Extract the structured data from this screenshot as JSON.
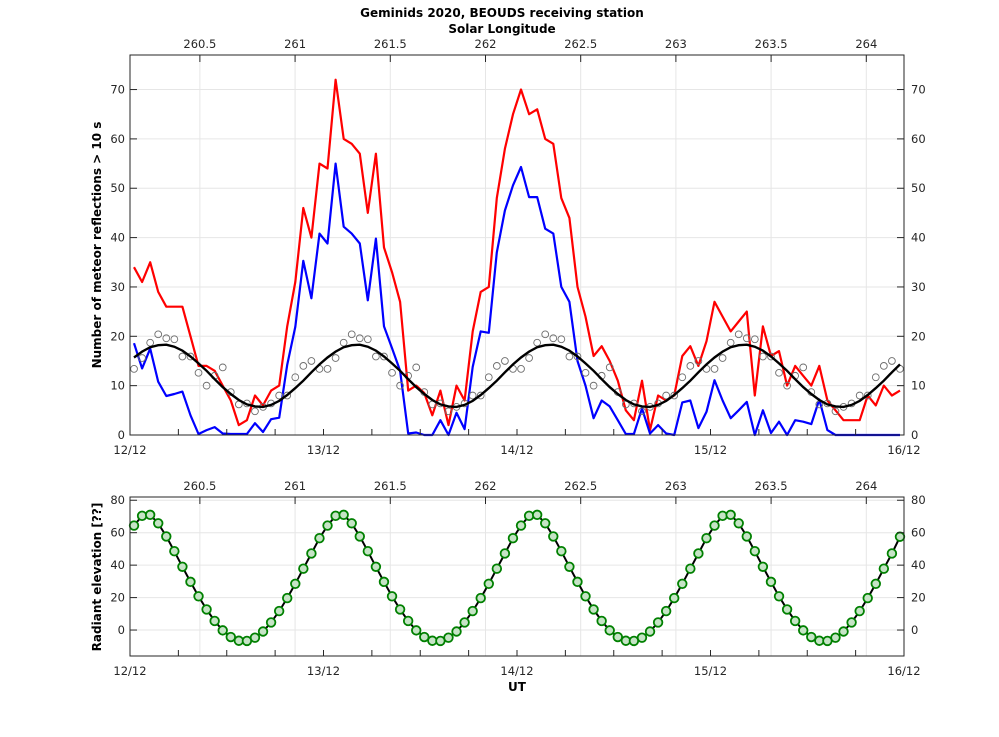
{
  "figure": {
    "title": "Geminids 2020, BEOUDS receiving station",
    "top_axis_label": "Solar Longitude",
    "colors": {
      "red_series": "#ff0000",
      "blue_series": "#0000ff",
      "dots": "#6e6e6e",
      "fit": "#000000",
      "elevation_marker_edge": "#008000",
      "elevation_marker_fill": "#c6e4c6",
      "grid": "#e6e6e6",
      "axes": "#262626"
    }
  },
  "chart_data": [
    {
      "type": "line",
      "ylabel": "Number of meteor reflections > 10 s",
      "xlabel": "",
      "ylim": [
        0,
        77
      ],
      "yticks": [
        0,
        10,
        20,
        30,
        40,
        50,
        60,
        70
      ],
      "xlim": [
        "12/12 00:00",
        "16/12 00:00"
      ],
      "xtick_labels": [
        "12/12",
        "13/12",
        "14/12",
        "15/12",
        "16/12"
      ],
      "x_minor_tick_hours": 6,
      "top_axis": {
        "label": "Solar Longitude",
        "range": [
          260.133,
          264.198
        ],
        "ticks": [
          "260.5",
          "261",
          "261.5",
          "262",
          "262.5",
          "263",
          "263.5",
          "264"
        ]
      },
      "grid": true,
      "right_axis_mirrored": true,
      "series": [
        {
          "style": "red-line",
          "color": "#ff0000",
          "values": [
            34,
            31,
            35,
            29,
            26,
            26,
            26,
            20,
            14,
            14,
            13,
            10,
            7,
            2,
            3,
            8,
            6,
            9,
            10,
            22,
            31,
            46,
            40,
            55,
            54,
            72,
            60,
            59,
            57,
            45,
            57,
            38,
            33,
            27,
            9,
            10,
            8.5,
            4,
            9,
            2,
            10,
            7,
            21,
            29,
            30,
            48,
            58,
            65,
            70,
            65,
            66,
            60,
            59,
            48,
            44,
            30,
            24,
            16,
            18,
            15,
            11,
            5,
            3,
            11,
            1,
            8,
            7,
            8,
            16,
            18,
            14,
            19,
            27,
            24,
            21,
            23,
            25,
            8,
            22,
            16,
            17,
            10,
            14,
            12,
            10,
            14,
            7,
            5,
            3,
            3,
            3,
            8,
            6,
            10,
            8,
            9
          ]
        },
        {
          "style": "blue-line",
          "color": "#0000ff",
          "values": [
            18.6,
            13.5,
            17.5,
            10.8,
            7.9,
            8.3,
            8.8,
            4,
            0.2,
            1,
            1.6,
            0.3,
            0.2,
            0.2,
            0.2,
            2.4,
            0.6,
            3.2,
            3.5,
            14.2,
            21.9,
            35.3,
            27.7,
            40.8,
            38.8,
            55,
            42.2,
            40.8,
            38.8,
            27.3,
            39.8,
            22,
            17.6,
            13,
            0.3,
            0.5,
            0,
            0,
            3,
            0,
            4.5,
            1.2,
            13.8,
            21,
            20.7,
            37,
            45.5,
            50.6,
            54.3,
            48.2,
            48.2,
            41.8,
            40.8,
            30,
            27,
            15,
            10,
            3.4,
            7,
            5.8,
            3,
            0.2,
            0.2,
            5.4,
            0.3,
            2,
            0.3,
            0,
            6.6,
            7,
            1.4,
            4.7,
            11.1,
            7,
            3.4,
            5,
            6.7,
            0,
            5,
            0.4,
            2.7,
            0,
            3,
            2.7,
            2.2,
            7.2,
            1,
            0,
            0,
            0,
            0,
            0,
            0,
            0,
            0,
            0
          ]
        },
        {
          "style": "open-circles",
          "color": "#6e6e6e",
          "values": [
            13.4,
            15.6,
            18.7,
            20.4,
            19.6,
            19.4,
            15.9,
            15.9,
            12.6,
            10,
            12,
            13.7,
            8.7,
            6.2,
            6.4,
            4.8,
            5.7,
            6.4,
            8,
            8,
            11.7,
            14,
            15,
            13.4,
            13.4,
            15.6,
            18.7,
            20.4,
            19.6,
            19.4,
            15.9,
            15.9,
            12.6,
            10,
            12,
            13.7,
            8.7,
            6.2,
            6.4,
            4.8,
            5.7,
            6.4,
            8,
            8,
            11.7,
            14,
            15,
            13.4,
            13.4,
            15.6,
            18.7,
            20.4,
            19.6,
            19.4,
            15.9,
            15.9,
            12.6,
            10,
            12,
            13.7,
            8.7,
            6.2,
            6.4,
            4.8,
            5.7,
            6.4,
            8,
            8,
            11.7,
            14,
            15,
            13.4,
            13.4,
            15.6,
            18.7,
            20.4,
            19.6,
            19.4,
            15.9,
            15.9,
            12.6,
            10,
            12,
            13.7,
            8.7,
            6.2,
            6.4,
            4.8,
            5.7,
            6.4,
            8,
            8,
            11.7,
            14,
            15,
            13.4
          ]
        },
        {
          "style": "black-curve",
          "color": "#000000",
          "values": [
            15.7,
            16.9,
            17.8,
            18.2,
            18.3,
            17.9,
            17.1,
            15.9,
            14.5,
            13,
            11.3,
            9.7,
            8.3,
            7.1,
            6.2,
            5.8,
            5.7,
            6.1,
            6.9,
            8.1,
            9.5,
            11,
            12.7,
            14.3,
            15.7,
            16.9,
            17.8,
            18.2,
            18.3,
            17.9,
            17.1,
            15.9,
            14.5,
            13,
            11.3,
            9.7,
            8.3,
            7.1,
            6.2,
            5.8,
            5.7,
            6.1,
            6.9,
            8.1,
            9.5,
            11,
            12.7,
            14.3,
            15.7,
            16.9,
            17.8,
            18.2,
            18.3,
            17.9,
            17.1,
            15.9,
            14.5,
            13,
            11.3,
            9.7,
            8.3,
            7.1,
            6.2,
            5.8,
            5.7,
            6.1,
            6.9,
            8.1,
            9.5,
            11,
            12.7,
            14.3,
            15.7,
            16.9,
            17.8,
            18.2,
            18.3,
            17.9,
            17.1,
            15.9,
            14.5,
            13,
            11.3,
            9.7,
            8.3,
            7.1,
            6.2,
            5.8,
            5.7,
            6.1,
            6.9,
            8.1,
            9.5,
            11,
            12.7,
            14.3
          ]
        }
      ]
    },
    {
      "type": "line",
      "ylabel": "Radiant elevation [??]",
      "xlabel": "UT",
      "ylim": [
        -16,
        82
      ],
      "yticks": [
        0,
        20,
        40,
        60,
        80
      ],
      "xlim": [
        "12/12 00:00",
        "16/12 00:00"
      ],
      "xtick_labels": [
        "12/12",
        "13/12",
        "14/12",
        "15/12",
        "16/12"
      ],
      "x_minor_tick_hours": 6,
      "top_axis": {
        "range": [
          260.133,
          264.198
        ],
        "ticks": [
          "260.5",
          "261",
          "261.5",
          "262",
          "262.5",
          "263",
          "263.5",
          "264"
        ]
      },
      "grid": true,
      "right_axis_mirrored": true,
      "series": [
        {
          "style": "line-with-circle-markers",
          "color": "#008000",
          "values": [
            64.4,
            70.4,
            71,
            65.8,
            57.7,
            48.6,
            39,
            29.7,
            20.8,
            12.7,
            5.6,
            -0.2,
            -4.3,
            -6.6,
            -6.7,
            -4.7,
            -0.9,
            4.7,
            11.7,
            19.7,
            28.5,
            37.8,
            47.2,
            56.6,
            64.4,
            70.4,
            71,
            65.8,
            57.7,
            48.6,
            39,
            29.7,
            20.8,
            12.7,
            5.6,
            -0.2,
            -4.3,
            -6.6,
            -6.7,
            -4.7,
            -0.9,
            4.7,
            11.7,
            19.7,
            28.5,
            37.8,
            47.2,
            56.6,
            64.4,
            70.4,
            71,
            65.8,
            57.7,
            48.6,
            39,
            29.7,
            20.8,
            12.7,
            5.6,
            -0.2,
            -4.3,
            -6.6,
            -6.7,
            -4.7,
            -0.9,
            4.7,
            11.7,
            19.7,
            28.5,
            37.8,
            47.2,
            56.6,
            64.4,
            70.4,
            71,
            65.8,
            57.7,
            48.6,
            39,
            29.7,
            20.8,
            12.7,
            5.6,
            -0.2,
            -4.3,
            -6.6,
            -6.7,
            -4.7,
            -0.9,
            4.7,
            11.7,
            19.7,
            28.5,
            37.8,
            47.2,
            57.5
          ]
        }
      ]
    }
  ],
  "x": [
    "12/12 00:30",
    "12/12 01:30",
    "12/12 02:30",
    "12/12 03:30",
    "12/12 04:30",
    "12/12 05:30",
    "12/12 06:30",
    "12/12 07:30",
    "12/12 08:30",
    "12/12 09:30",
    "12/12 10:30",
    "12/12 11:30",
    "12/12 12:30",
    "12/12 13:30",
    "12/12 14:30",
    "12/12 15:30",
    "12/12 16:30",
    "12/12 17:30",
    "12/12 18:30",
    "12/12 19:30",
    "12/12 20:30",
    "12/12 21:30",
    "12/12 22:30",
    "12/12 23:30",
    "13/12 00:30",
    "13/12 01:30",
    "13/12 02:30",
    "13/12 03:30",
    "13/12 04:30",
    "13/12 05:30",
    "13/12 06:30",
    "13/12 07:30",
    "13/12 08:30",
    "13/12 09:30",
    "13/12 10:30",
    "13/12 11:30",
    "13/12 12:30",
    "13/12 13:30",
    "13/12 14:30",
    "13/12 15:30",
    "13/12 16:30",
    "13/12 17:30",
    "13/12 18:30",
    "13/12 19:30",
    "13/12 20:30",
    "13/12 21:30",
    "13/12 22:30",
    "13/12 23:30",
    "14/12 00:30",
    "14/12 01:30",
    "14/12 02:30",
    "14/12 03:30",
    "14/12 04:30",
    "14/12 05:30",
    "14/12 06:30",
    "14/12 07:30",
    "14/12 08:30",
    "14/12 09:30",
    "14/12 10:30",
    "14/12 11:30",
    "14/12 12:30",
    "14/12 13:30",
    "14/12 14:30",
    "14/12 15:30",
    "14/12 16:30",
    "14/12 17:30",
    "14/12 18:30",
    "14/12 19:30",
    "14/12 20:30",
    "14/12 21:30",
    "14/12 22:30",
    "14/12 23:30",
    "15/12 00:30",
    "15/12 01:30",
    "15/12 02:30",
    "15/12 03:30",
    "15/12 04:30",
    "15/12 05:30",
    "15/12 06:30",
    "15/12 07:30",
    "15/12 08:30",
    "15/12 09:30",
    "15/12 10:30",
    "15/12 11:30",
    "15/12 12:30",
    "15/12 13:30",
    "15/12 14:30",
    "15/12 15:30",
    "15/12 16:30",
    "15/12 17:30",
    "15/12 18:30",
    "15/12 19:30",
    "15/12 20:30",
    "15/12 21:30",
    "15/12 22:30",
    "15/12 23:30"
  ]
}
